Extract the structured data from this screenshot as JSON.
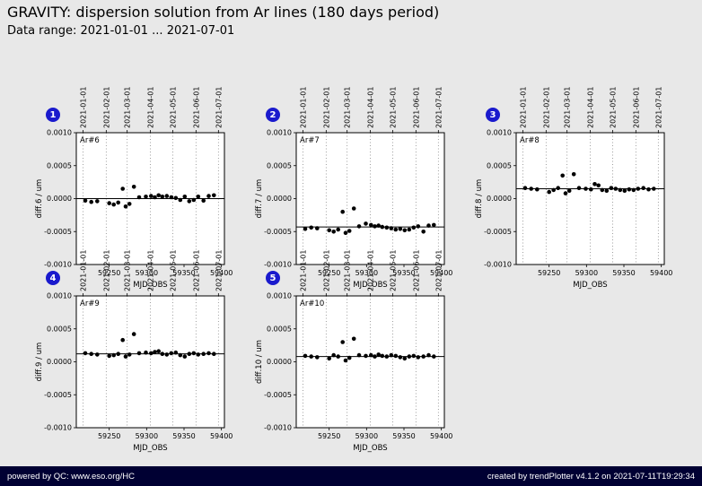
{
  "header": {
    "title": "GRAVITY: dispersion solution from Ar lines (180 days period)",
    "subtitle": "Data range: 2021-01-01 ... 2021-07-01"
  },
  "footer": {
    "left": "powered by QC: www.eso.org/HC",
    "right": "created by trendPlotter v4.1.2 on 2021-07-11T19:29:34"
  },
  "colors": {
    "page_background": "#e8e8e8",
    "plot_background": "#ffffff",
    "footer_background": "#000033",
    "badge_blue": "#1a1acd",
    "marker": "#000000",
    "gridline": "#888888"
  },
  "chart_data": {
    "type": "scatter",
    "shared": {
      "xlabel": "MJD_OBS",
      "xlim": [
        59206,
        59404
      ],
      "ylim": [
        -0.001,
        0.001
      ],
      "xticks": [
        59250,
        59300,
        59350,
        59400
      ],
      "yticks": [
        -0.001,
        -0.0005,
        0.0,
        0.0005,
        0.001
      ],
      "ytick_labels": [
        "-0.0010",
        "-0.0005",
        "0.0000",
        "0.0005",
        "0.0010"
      ],
      "grid": "dotted vertical lines at month boundaries",
      "legend": "none",
      "marker": "black filled circle",
      "gridlines": [
        {
          "mjd": 59215,
          "label": "2021-01-01"
        },
        {
          "mjd": 59246,
          "label": "2021-02-01"
        },
        {
          "mjd": 59274,
          "label": "2021-03-01"
        },
        {
          "mjd": 59305,
          "label": "2021-04-01"
        },
        {
          "mjd": 59335,
          "label": "2021-05-01"
        },
        {
          "mjd": 59366,
          "label": "2021-06-01"
        },
        {
          "mjd": 59396,
          "label": "2021-07-01"
        }
      ]
    },
    "panels": [
      {
        "index": 1,
        "annotation": "Ar#6",
        "ylabel": "diff.6 / um",
        "fit_line_y": 0.0,
        "x": [
          59218,
          59226,
          59234,
          59250,
          59256,
          59262,
          59268,
          59272,
          59277,
          59283,
          59290,
          59299,
          59306,
          59311,
          59316,
          59321,
          59327,
          59333,
          59339,
          59345,
          59351,
          59357,
          59363,
          59369,
          59376,
          59383,
          59390
        ],
        "y": [
          -3e-05,
          -5e-05,
          -4e-05,
          -7e-05,
          -9e-05,
          -6e-05,
          0.00015,
          -0.00012,
          -8e-05,
          0.00018,
          2e-05,
          3e-05,
          4e-05,
          2e-05,
          5e-05,
          3e-05,
          4e-05,
          2e-05,
          1e-05,
          -2e-05,
          3e-05,
          -4e-05,
          -2e-05,
          3e-05,
          -3e-05,
          4e-05,
          5e-05
        ]
      },
      {
        "index": 2,
        "annotation": "Ar#7",
        "ylabel": "diff.7 / um",
        "fit_line_y": -0.00043,
        "x": [
          59218,
          59226,
          59234,
          59250,
          59256,
          59262,
          59268,
          59272,
          59277,
          59283,
          59290,
          59299,
          59306,
          59311,
          59316,
          59321,
          59327,
          59333,
          59339,
          59345,
          59351,
          59357,
          59363,
          59369,
          59376,
          59383,
          59390
        ],
        "y": [
          -0.00046,
          -0.00044,
          -0.00045,
          -0.00048,
          -0.0005,
          -0.00047,
          -0.0002,
          -0.00052,
          -0.00049,
          -0.00015,
          -0.00042,
          -0.00038,
          -0.0004,
          -0.00042,
          -0.00041,
          -0.00043,
          -0.00044,
          -0.00045,
          -0.00047,
          -0.00046,
          -0.00048,
          -0.00047,
          -0.00044,
          -0.00042,
          -0.0005,
          -0.00041,
          -0.0004
        ]
      },
      {
        "index": 3,
        "annotation": "Ar#8",
        "ylabel": "diff.8 / um",
        "fit_line_y": 0.00015,
        "x": [
          59218,
          59226,
          59234,
          59250,
          59256,
          59262,
          59268,
          59272,
          59277,
          59283,
          59290,
          59299,
          59306,
          59311,
          59316,
          59321,
          59327,
          59333,
          59339,
          59345,
          59351,
          59357,
          59363,
          59369,
          59376,
          59383,
          59390
        ],
        "y": [
          0.00016,
          0.00015,
          0.00014,
          0.0001,
          0.00013,
          0.00016,
          0.00035,
          8e-05,
          0.00012,
          0.00037,
          0.00016,
          0.00015,
          0.00014,
          0.00022,
          0.0002,
          0.00013,
          0.00012,
          0.00016,
          0.00015,
          0.00013,
          0.00012,
          0.00014,
          0.00013,
          0.00015,
          0.00016,
          0.00014,
          0.00015
        ]
      },
      {
        "index": 4,
        "annotation": "Ar#9",
        "ylabel": "diff.9 / um",
        "fit_line_y": 0.00012,
        "x": [
          59218,
          59226,
          59234,
          59250,
          59256,
          59262,
          59268,
          59272,
          59277,
          59283,
          59290,
          59299,
          59306,
          59311,
          59316,
          59321,
          59327,
          59333,
          59339,
          59345,
          59351,
          59357,
          59363,
          59369,
          59376,
          59383,
          59390
        ],
        "y": [
          0.00013,
          0.00012,
          0.00011,
          9e-05,
          0.0001,
          0.00012,
          0.00033,
          8e-05,
          0.00011,
          0.00042,
          0.00013,
          0.00014,
          0.00013,
          0.00015,
          0.00016,
          0.00012,
          0.00011,
          0.00013,
          0.00014,
          0.0001,
          8e-05,
          0.00012,
          0.00013,
          0.00011,
          0.00012,
          0.00013,
          0.00012
        ]
      },
      {
        "index": 5,
        "annotation": "Ar#10",
        "ylabel": "diff.10 / um",
        "fit_line_y": 8e-05,
        "x": [
          59218,
          59226,
          59234,
          59250,
          59256,
          59262,
          59268,
          59272,
          59277,
          59283,
          59290,
          59299,
          59306,
          59311,
          59316,
          59321,
          59327,
          59333,
          59339,
          59345,
          59351,
          59357,
          59363,
          59369,
          59376,
          59383,
          59390
        ],
        "y": [
          9e-05,
          8e-05,
          7e-05,
          5e-05,
          0.0001,
          8e-05,
          0.0003,
          2e-05,
          6e-05,
          0.00035,
          0.0001,
          9e-05,
          0.0001,
          8e-05,
          0.00011,
          9e-05,
          8e-05,
          0.0001,
          9e-05,
          7e-05,
          5e-05,
          8e-05,
          9e-05,
          7e-05,
          8e-05,
          0.0001,
          8e-05
        ]
      }
    ]
  }
}
